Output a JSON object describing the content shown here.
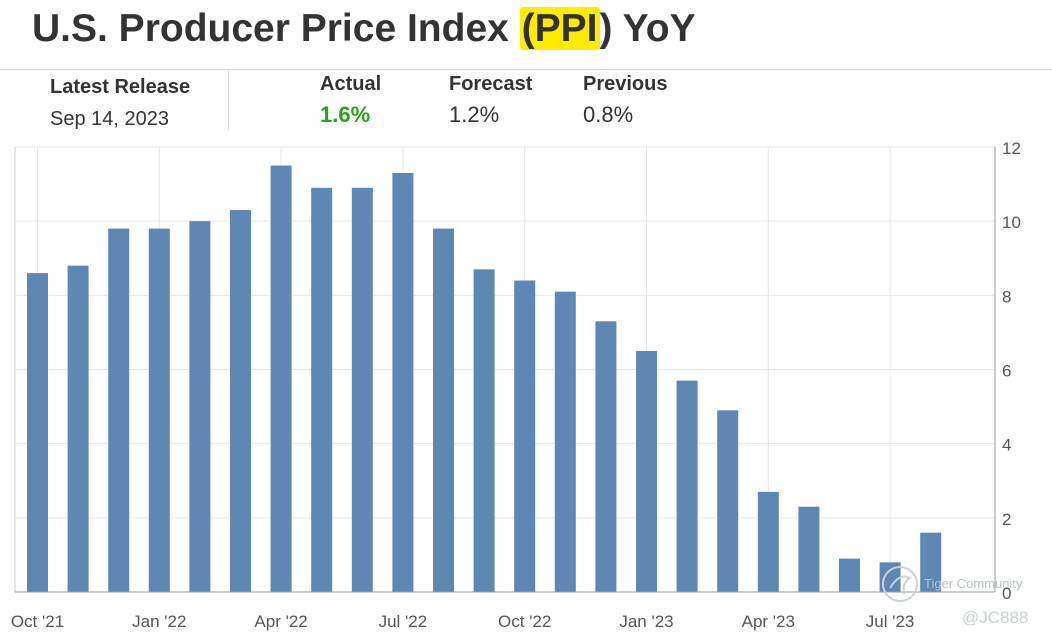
{
  "header": {
    "title_pre": "U.S. Producer Price Index ",
    "title_hl": "(PPI",
    "title_post": ") YoY"
  },
  "stats": {
    "latest_release_label": "Latest Release",
    "latest_release_date": "Sep 14, 2023",
    "actual_label": "Actual",
    "actual_value": "1.6%",
    "forecast_label": "Forecast",
    "forecast_value": "1.2%",
    "previous_label": "Previous",
    "previous_value": "0.8%"
  },
  "colors": {
    "bar": "#5f87b3",
    "actual": "#26a31c",
    "highlight": "#ffeb00",
    "grid": "#e6e6e6"
  },
  "watermark": {
    "brand": "Tiger Community",
    "handle": "@JC888"
  },
  "chart_data": {
    "type": "bar",
    "categories": [
      "Oct '21",
      "Nov '21",
      "Dec '21",
      "Jan '22",
      "Feb '22",
      "Mar '22",
      "Apr '22",
      "May '22",
      "Jun '22",
      "Jul '22",
      "Aug '22",
      "Sep '22",
      "Oct '22",
      "Nov '22",
      "Dec '22",
      "Jan '23",
      "Feb '23",
      "Mar '23",
      "Apr '23",
      "May '23",
      "Jun '23",
      "Jul '23",
      "Aug '23"
    ],
    "values": [
      8.6,
      8.8,
      9.8,
      9.8,
      10.0,
      10.3,
      11.5,
      10.9,
      10.9,
      11.3,
      9.8,
      8.7,
      8.4,
      8.1,
      7.3,
      6.5,
      5.7,
      4.9,
      2.7,
      2.3,
      0.9,
      0.8,
      1.6
    ],
    "x_tick_labels": [
      {
        "index": 0,
        "label": "Oct '21"
      },
      {
        "index": 3,
        "label": "Jan '22"
      },
      {
        "index": 6,
        "label": "Apr '22"
      },
      {
        "index": 9,
        "label": "Jul '22"
      },
      {
        "index": 12,
        "label": "Oct '22"
      },
      {
        "index": 15,
        "label": "Jan '23"
      },
      {
        "index": 18,
        "label": "Apr '23"
      },
      {
        "index": 21,
        "label": "Jul '23"
      }
    ],
    "y_ticks": [
      0,
      2,
      4,
      6,
      8,
      10,
      12
    ],
    "ylim": [
      0,
      12
    ],
    "y_axis_side": "right",
    "grid": true
  }
}
